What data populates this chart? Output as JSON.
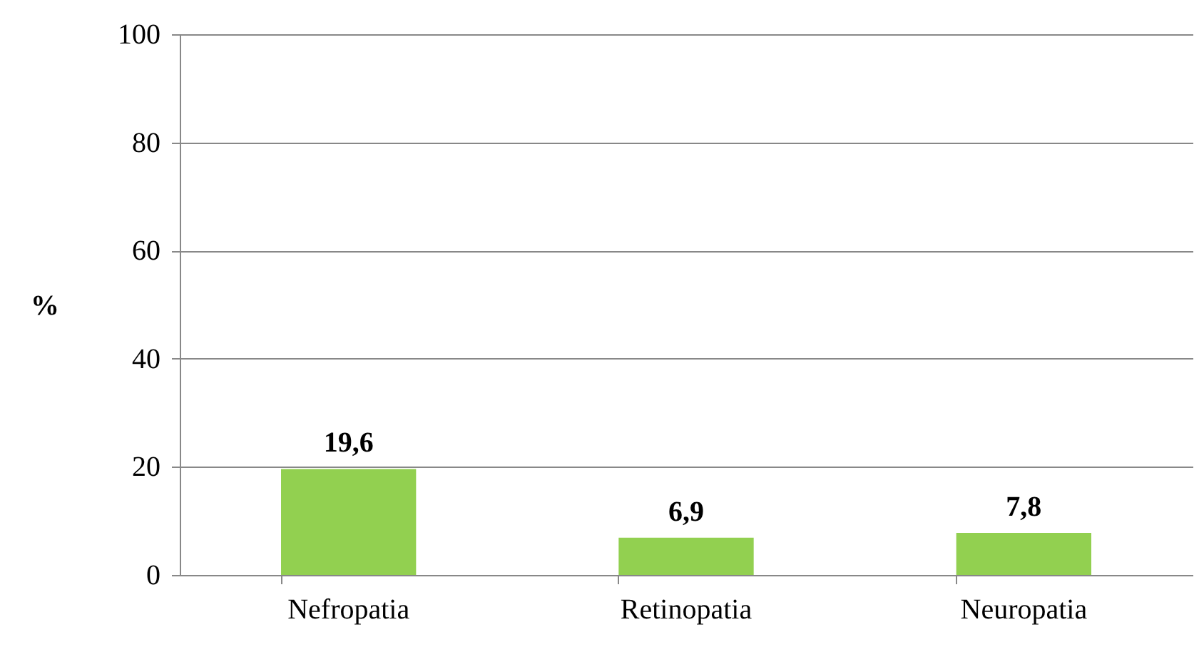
{
  "chart_data": {
    "type": "bar",
    "ylabel": "%",
    "categories": [
      "Nefropatia",
      "Retinopatia",
      "Neuropatia"
    ],
    "values": [
      19.6,
      6.9,
      7.8
    ],
    "color": "#92d050",
    "value_labels": [
      "19,6",
      "6,9",
      "7,8"
    ],
    "ylim": [
      0,
      100
    ],
    "yticks": [
      0,
      20,
      40,
      60,
      80,
      100
    ],
    "grid": "y"
  }
}
